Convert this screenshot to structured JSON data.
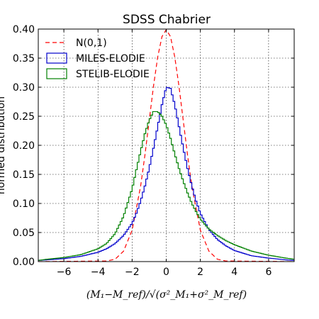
{
  "chart_data": {
    "type": "line",
    "title": "SDSS Chabrier",
    "ylabel": "normed distribution",
    "xlabel": "(M₁−M_ref)/√(σ²_M₁+σ²_M_ref)",
    "xlim": [
      -7.5,
      7.5
    ],
    "ylim": [
      0.0,
      0.4
    ],
    "grid": true,
    "legend_position": "top-left",
    "x_ticks": [
      -6,
      -4,
      -2,
      0,
      2,
      4,
      6
    ],
    "x_tick_labels": [
      "−6",
      "−4",
      "−2",
      "0",
      "2",
      "4",
      "6"
    ],
    "y_ticks": [
      0.0,
      0.05,
      0.1,
      0.15,
      0.2,
      0.25,
      0.3,
      0.35,
      0.4
    ],
    "y_tick_labels": [
      "0.00",
      "0.05",
      "0.10",
      "0.15",
      "0.20",
      "0.25",
      "0.30",
      "0.35",
      "0.40"
    ],
    "series": [
      {
        "name": "N(0,1)",
        "style": "dashed",
        "color": "#ff0000",
        "x": [
          -7.5,
          -3.5,
          -3.0,
          -2.5,
          -2.0,
          -1.5,
          -1.25,
          -1.0,
          -0.75,
          -0.5,
          -0.25,
          0.0,
          0.25,
          0.5,
          0.75,
          1.0,
          1.25,
          1.5,
          2.0,
          2.5,
          3.0,
          3.5,
          7.5
        ],
        "y": [
          0.0,
          0.001,
          0.004,
          0.018,
          0.054,
          0.13,
          0.183,
          0.242,
          0.301,
          0.352,
          0.387,
          0.399,
          0.387,
          0.352,
          0.301,
          0.242,
          0.183,
          0.13,
          0.054,
          0.018,
          0.004,
          0.001,
          0.0
        ]
      },
      {
        "name": "MILES-ELODIE",
        "style": "step",
        "color": "#0000cc",
        "x": [
          -7.5,
          -7.0,
          -6.0,
          -5.0,
          -4.0,
          -3.5,
          -3.0,
          -2.5,
          -2.0,
          -1.75,
          -1.5,
          -1.25,
          -1.0,
          -0.75,
          -0.5,
          -0.25,
          0.0,
          0.25,
          0.5,
          0.75,
          1.0,
          1.25,
          1.5,
          1.75,
          2.0,
          2.5,
          3.0,
          3.5,
          4.0,
          5.0,
          6.0,
          7.0,
          7.5
        ],
        "y": [
          0.002,
          0.003,
          0.005,
          0.009,
          0.016,
          0.022,
          0.031,
          0.045,
          0.066,
          0.083,
          0.104,
          0.13,
          0.16,
          0.195,
          0.232,
          0.27,
          0.3,
          0.298,
          0.27,
          0.232,
          0.195,
          0.16,
          0.13,
          0.104,
          0.083,
          0.055,
          0.038,
          0.027,
          0.019,
          0.01,
          0.006,
          0.003,
          0.002
        ]
      },
      {
        "name": "STELIB-ELODIE",
        "style": "step",
        "color": "#008000",
        "x": [
          -7.5,
          -7.0,
          -6.0,
          -5.0,
          -4.0,
          -3.5,
          -3.0,
          -2.5,
          -2.0,
          -1.75,
          -1.5,
          -1.25,
          -1.0,
          -0.75,
          -0.5,
          -0.25,
          0.0,
          0.25,
          0.5,
          0.75,
          1.0,
          1.25,
          1.5,
          1.75,
          2.0,
          2.5,
          3.0,
          3.5,
          4.0,
          5.0,
          6.0,
          7.0,
          7.5
        ],
        "y": [
          0.002,
          0.004,
          0.007,
          0.012,
          0.022,
          0.031,
          0.048,
          0.078,
          0.125,
          0.158,
          0.19,
          0.22,
          0.243,
          0.258,
          0.258,
          0.25,
          0.235,
          0.212,
          0.185,
          0.16,
          0.138,
          0.118,
          0.1,
          0.086,
          0.073,
          0.056,
          0.045,
          0.036,
          0.029,
          0.018,
          0.011,
          0.006,
          0.004
        ]
      }
    ]
  }
}
